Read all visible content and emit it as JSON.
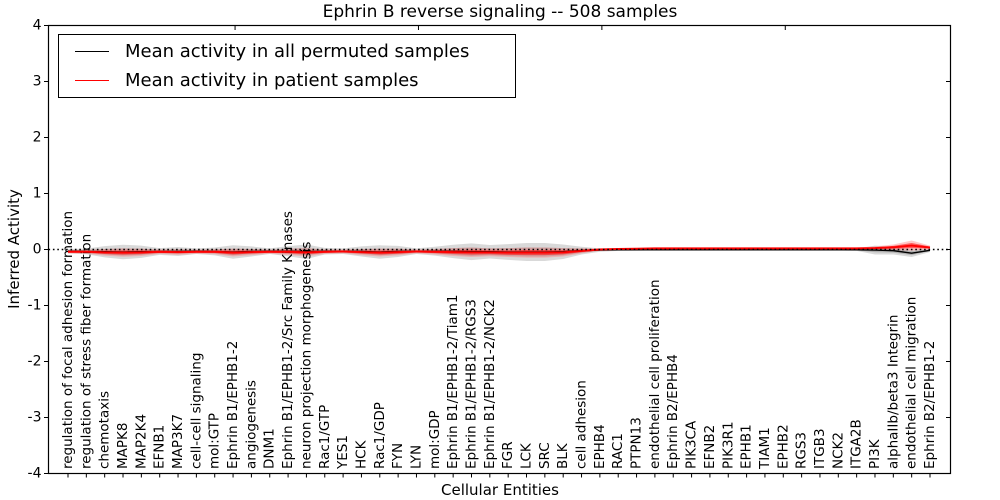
{
  "chart_data": {
    "type": "line",
    "title": "Ephrin B reverse signaling -- 508 samples",
    "xlabel": "Cellular Entities",
    "ylabel": "Inferred Activity",
    "ylim": [
      -4,
      4
    ],
    "yticks": [
      4,
      3,
      2,
      1,
      0,
      -1,
      -2,
      -3,
      -4
    ],
    "grid": false,
    "legend_position": "upper left",
    "zero_reference_line": {
      "y": 0,
      "style": "dotted",
      "color": "#000000"
    },
    "categories": [
      "regulation of focal adhesion formation",
      "regulation of stress fiber formation",
      "chemotaxis",
      "MAPK8",
      "MAP2K4",
      "EFNB1",
      "MAP3K7",
      "cell-cell signaling",
      "mol:GTP",
      "Ephrin B1/EPHB1-2",
      "angiogenesis",
      "DNM1",
      "Ephrin B1/EPHB1-2/Src Family Kinases",
      "neuron projection morphogenesis",
      "Rac1/GTP",
      "YES1",
      "HCK",
      "Rac1/GDP",
      "FYN",
      "LYN",
      "mol:GDP",
      "Ephrin B1/EPHB1-2/Tiam1",
      "Ephrin B1/EPHB1-2/RGS3",
      "Ephrin B1/EPHB1-2/NCK2",
      "FGR",
      "LCK",
      "SRC",
      "BLK",
      "cell adhesion",
      "EPHB4",
      "RAC1",
      "PTPN13",
      "endothelial cell proliferation",
      "Ephrin B2/EPHB4",
      "PIK3CA",
      "EFNB2",
      "PIK3R1",
      "EPHB1",
      "TIAM1",
      "EPHB2",
      "RGS3",
      "ITGB3",
      "NCK2",
      "ITGA2B",
      "PI3K",
      "alphaIIb/beta3 Integrin",
      "endothelial cell migration",
      "Ephrin B2/EPHB1-2"
    ],
    "series": [
      {
        "name": "Mean activity in all permuted samples",
        "color": "#000000",
        "values": [
          -0.03,
          -0.035,
          -0.04,
          -0.045,
          -0.04,
          -0.035,
          -0.035,
          -0.03,
          -0.035,
          -0.045,
          -0.035,
          -0.03,
          -0.03,
          -0.04,
          -0.03,
          -0.03,
          -0.035,
          -0.045,
          -0.035,
          -0.03,
          -0.03,
          -0.035,
          -0.04,
          -0.04,
          -0.045,
          -0.045,
          -0.045,
          -0.04,
          -0.02,
          -0.01,
          -0.005,
          -0.005,
          -0.005,
          -0.005,
          -0.005,
          -0.005,
          -0.005,
          -0.005,
          -0.005,
          -0.005,
          -0.005,
          -0.005,
          -0.005,
          -0.005,
          -0.01,
          -0.02,
          -0.065,
          -0.015
        ]
      },
      {
        "name": "Mean activity in patient samples",
        "color": "#ff0000",
        "values": [
          -0.04,
          -0.04,
          -0.05,
          -0.055,
          -0.05,
          -0.04,
          -0.045,
          -0.04,
          -0.04,
          -0.055,
          -0.045,
          -0.04,
          -0.04,
          -0.05,
          -0.04,
          -0.035,
          -0.045,
          -0.055,
          -0.045,
          -0.035,
          -0.04,
          -0.045,
          -0.05,
          -0.05,
          -0.055,
          -0.055,
          -0.055,
          -0.05,
          -0.025,
          0.0,
          0.01,
          0.015,
          0.02,
          0.02,
          0.02,
          0.02,
          0.02,
          0.02,
          0.02,
          0.02,
          0.02,
          0.02,
          0.02,
          0.02,
          0.025,
          0.04,
          0.07,
          0.035
        ]
      }
    ],
    "spread_bands": [
      {
        "series": "Mean activity in all permuted samples",
        "color": "#aaaaaa",
        "opacity": 0.45,
        "inner_scale": 0.5,
        "inner_color": "#8c8c8c",
        "inner_opacity": 0.5,
        "half_widths": [
          0.04,
          0.05,
          0.1,
          0.13,
          0.11,
          0.06,
          0.08,
          0.05,
          0.07,
          0.12,
          0.09,
          0.05,
          0.09,
          0.13,
          0.06,
          0.05,
          0.09,
          0.12,
          0.1,
          0.05,
          0.08,
          0.12,
          0.15,
          0.12,
          0.14,
          0.16,
          0.16,
          0.13,
          0.07,
          0.03,
          0.02,
          0.015,
          0.01,
          0.01,
          0.01,
          0.01,
          0.01,
          0.01,
          0.01,
          0.01,
          0.01,
          0.01,
          0.01,
          0.02,
          0.08,
          0.07,
          0.07,
          0.03
        ]
      },
      {
        "series": "Mean activity in patient samples",
        "color": "#ff7777",
        "opacity": 0.4,
        "inner_scale": 0.5,
        "inner_color": "#ff1111",
        "inner_opacity": 0.6,
        "half_widths": [
          0.03,
          0.035,
          0.06,
          0.075,
          0.065,
          0.04,
          0.05,
          0.035,
          0.045,
          0.07,
          0.055,
          0.035,
          0.055,
          0.075,
          0.04,
          0.035,
          0.055,
          0.07,
          0.06,
          0.035,
          0.05,
          0.07,
          0.085,
          0.07,
          0.08,
          0.09,
          0.09,
          0.075,
          0.045,
          0.02,
          0.015,
          0.012,
          0.01,
          0.01,
          0.01,
          0.01,
          0.01,
          0.01,
          0.01,
          0.01,
          0.01,
          0.01,
          0.01,
          0.015,
          0.03,
          0.05,
          0.09,
          0.035
        ]
      }
    ]
  }
}
